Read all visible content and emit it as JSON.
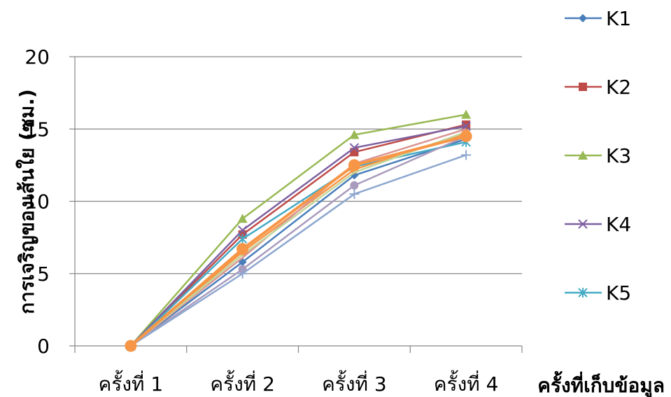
{
  "chart_data": {
    "type": "line",
    "title": "",
    "xlabel": "ครั้งที่เก็บข้อมูล",
    "ylabel": "การเจริญของเส้นใย (ซม.)",
    "categories": [
      "ครั้งที่ 1",
      "ครั้งที่ 2",
      "ครั้งที่ 3",
      "ครั้งที่ 4"
    ],
    "ylim": [
      0,
      20
    ],
    "yticks": [
      "0",
      "5",
      "10",
      "15",
      "20"
    ],
    "grid": "horizontal",
    "legend_position": "right",
    "series": [
      {
        "name": "K1",
        "values": [
          0,
          5.8,
          11.8,
          14.3
        ],
        "color": "#4a7ebb",
        "marker": "diamond",
        "legend": true
      },
      {
        "name": "K2",
        "values": [
          0,
          7.7,
          13.4,
          15.3
        ],
        "color": "#be4b48",
        "marker": "square",
        "legend": true
      },
      {
        "name": "K3",
        "values": [
          0,
          8.8,
          14.6,
          16.0
        ],
        "color": "#98b954",
        "marker": "triangle",
        "legend": true
      },
      {
        "name": "K4",
        "values": [
          0,
          8.0,
          13.7,
          15.2
        ],
        "color": "#7d60a0",
        "marker": "x",
        "legend": true
      },
      {
        "name": "K5",
        "values": [
          0,
          7.4,
          12.4,
          14.1
        ],
        "color": "#46aac5",
        "marker": "star",
        "legend": true
      },
      {
        "values": [
          0,
          6.5,
          12.2,
          14.7
        ],
        "color": "#f79646",
        "marker": "circle",
        "legend": false
      },
      {
        "values": [
          0,
          5.3,
          11.1,
          14.5
        ],
        "color": "#a99bbd",
        "marker": "circle",
        "legend": false
      },
      {
        "values": [
          0,
          5.0,
          10.5,
          13.2
        ],
        "color": "#8ea7cf",
        "marker": "plus",
        "legend": false
      },
      {
        "values": [
          0,
          6.1,
          12.6,
          15.0
        ],
        "color": "#d99694",
        "marker": "none",
        "legend": false
      },
      {
        "values": [
          0,
          6.3,
          12.0,
          14.8
        ],
        "color": "#c3d69b",
        "marker": "none",
        "legend": false
      },
      {
        "values": [
          0,
          6.7,
          12.5,
          14.5
        ],
        "color": "#f79646",
        "marker": "bigcircle",
        "legend": false
      }
    ]
  }
}
